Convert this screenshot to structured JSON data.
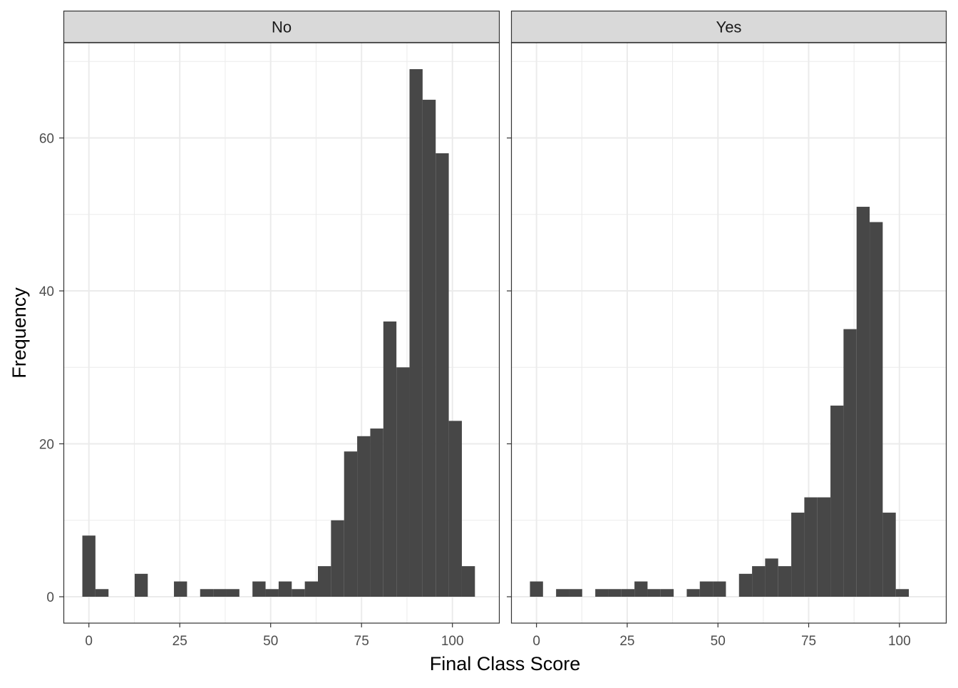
{
  "chart_data": {
    "type": "histogram",
    "facets": [
      {
        "label": "No",
        "bin_width": 3.6,
        "bins": [
          {
            "x": 0.0,
            "count": 8
          },
          {
            "x": 3.6,
            "count": 1
          },
          {
            "x": 14.4,
            "count": 3
          },
          {
            "x": 25.2,
            "count": 2
          },
          {
            "x": 32.4,
            "count": 1
          },
          {
            "x": 36.0,
            "count": 1
          },
          {
            "x": 39.6,
            "count": 1
          },
          {
            "x": 46.8,
            "count": 2
          },
          {
            "x": 50.4,
            "count": 1
          },
          {
            "x": 54.0,
            "count": 2
          },
          {
            "x": 57.6,
            "count": 1
          },
          {
            "x": 61.2,
            "count": 2
          },
          {
            "x": 64.8,
            "count": 4
          },
          {
            "x": 68.4,
            "count": 10
          },
          {
            "x": 72.0,
            "count": 19
          },
          {
            "x": 75.6,
            "count": 21
          },
          {
            "x": 79.2,
            "count": 22
          },
          {
            "x": 82.8,
            "count": 36
          },
          {
            "x": 86.4,
            "count": 30
          },
          {
            "x": 90.0,
            "count": 69
          },
          {
            "x": 93.6,
            "count": 65
          },
          {
            "x": 97.2,
            "count": 58
          },
          {
            "x": 100.8,
            "count": 23
          },
          {
            "x": 104.4,
            "count": 4
          }
        ]
      },
      {
        "label": "Yes",
        "bin_width": 3.6,
        "bins": [
          {
            "x": 0.0,
            "count": 2
          },
          {
            "x": 7.2,
            "count": 1
          },
          {
            "x": 10.8,
            "count": 1
          },
          {
            "x": 18.0,
            "count": 1
          },
          {
            "x": 21.6,
            "count": 1
          },
          {
            "x": 25.2,
            "count": 1
          },
          {
            "x": 28.8,
            "count": 2
          },
          {
            "x": 32.4,
            "count": 1
          },
          {
            "x": 36.0,
            "count": 1
          },
          {
            "x": 43.2,
            "count": 1
          },
          {
            "x": 46.8,
            "count": 2
          },
          {
            "x": 50.4,
            "count": 2
          },
          {
            "x": 57.6,
            "count": 3
          },
          {
            "x": 61.2,
            "count": 4
          },
          {
            "x": 64.8,
            "count": 5
          },
          {
            "x": 68.4,
            "count": 4
          },
          {
            "x": 72.0,
            "count": 11
          },
          {
            "x": 75.6,
            "count": 13
          },
          {
            "x": 79.2,
            "count": 13
          },
          {
            "x": 82.8,
            "count": 25
          },
          {
            "x": 86.4,
            "count": 35
          },
          {
            "x": 90.0,
            "count": 51
          },
          {
            "x": 93.6,
            "count": 49
          },
          {
            "x": 97.2,
            "count": 11
          },
          {
            "x": 100.8,
            "count": 1
          }
        ]
      }
    ],
    "xlabel": "Final Class Score",
    "ylabel": "Frequency",
    "x_ticks": [
      0,
      25,
      50,
      75,
      100
    ],
    "y_ticks": [
      0,
      20,
      40,
      60
    ],
    "xlim": [
      -7,
      113
    ],
    "ylim": [
      -3.45,
      72.45
    ],
    "grid": true,
    "bar_color": "#474747",
    "strip_color": "#d9d9d9",
    "panel_border_color": "#333333",
    "grid_color": "#ebebeb"
  }
}
